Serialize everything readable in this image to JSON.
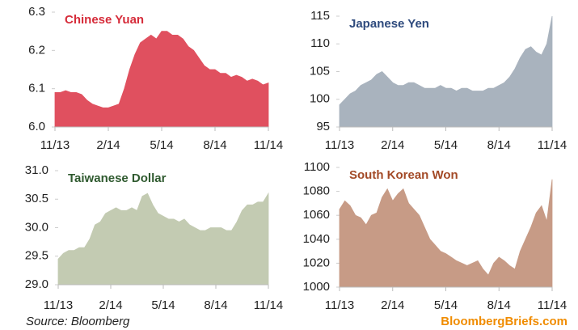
{
  "chart_data": [
    {
      "type": "area",
      "title": "Chinese Yuan",
      "title_color": "#d62c3a",
      "color": "#e0505f",
      "x": [
        0,
        0.3,
        0.6,
        0.9,
        1.2,
        1.5,
        1.8,
        2.1,
        2.4,
        2.7,
        3,
        3.3,
        3.6,
        3.9,
        4.2,
        4.5,
        4.8,
        5.1,
        5.4,
        5.7,
        6,
        6.3,
        6.6,
        6.9,
        7.2,
        7.5,
        7.8,
        8.1,
        8.4,
        8.7,
        9,
        9.3,
        9.6,
        9.9,
        10.2,
        10.5,
        10.8,
        11.1,
        11.4,
        11.7,
        12
      ],
      "values": [
        6.09,
        6.09,
        6.095,
        6.09,
        6.09,
        6.085,
        6.07,
        6.06,
        6.055,
        6.05,
        6.05,
        6.055,
        6.06,
        6.1,
        6.15,
        6.19,
        6.22,
        6.23,
        6.24,
        6.23,
        6.25,
        6.25,
        6.24,
        6.24,
        6.23,
        6.21,
        6.2,
        6.18,
        6.16,
        6.15,
        6.15,
        6.14,
        6.14,
        6.13,
        6.135,
        6.13,
        6.12,
        6.125,
        6.12,
        6.11,
        6.115
      ],
      "xlim": [
        0,
        12
      ],
      "xticks": [
        {
          "value": 0,
          "label": "11/13"
        },
        {
          "value": 3,
          "label": "2/14"
        },
        {
          "value": 6,
          "label": "5/14"
        },
        {
          "value": 9,
          "label": "8/14"
        },
        {
          "value": 12,
          "label": "11/14"
        }
      ],
      "ylim": [
        6.0,
        6.3
      ],
      "yticks": [
        {
          "value": 6.0,
          "label": "6.0"
        },
        6.1,
        6.2,
        6.3
      ]
    },
    {
      "type": "area",
      "title": "Japanese Yen",
      "title_color": "#2e4a7d",
      "color": "#a9b3be",
      "x": [
        0,
        0.3,
        0.6,
        0.9,
        1.2,
        1.5,
        1.8,
        2.1,
        2.4,
        2.7,
        3,
        3.3,
        3.6,
        3.9,
        4.2,
        4.5,
        4.8,
        5.1,
        5.4,
        5.7,
        6,
        6.3,
        6.6,
        6.9,
        7.2,
        7.5,
        7.8,
        8.1,
        8.4,
        8.7,
        9,
        9.3,
        9.6,
        9.9,
        10.2,
        10.5,
        10.8,
        11.1,
        11.4,
        11.7,
        12
      ],
      "values": [
        99,
        100,
        101,
        101.5,
        102.5,
        103,
        103.5,
        104.5,
        105,
        104,
        103,
        102.5,
        102.5,
        103,
        103,
        102.5,
        102,
        102,
        102,
        102.5,
        102,
        102,
        101.5,
        102,
        102,
        101.5,
        101.5,
        101.5,
        102,
        102,
        102.5,
        103,
        104,
        105.5,
        107.5,
        109,
        109.5,
        108.5,
        108,
        110,
        115
      ],
      "xlim": [
        0,
        12
      ],
      "xticks": [
        {
          "value": 0,
          "label": "11/13"
        },
        {
          "value": 3,
          "label": "2/14"
        },
        {
          "value": 6,
          "label": "5/14"
        },
        {
          "value": 9,
          "label": "8/14"
        },
        {
          "value": 12,
          "label": "11/14"
        }
      ],
      "ylim": [
        95,
        115
      ],
      "yticks": [
        95,
        100,
        105,
        110,
        115
      ]
    },
    {
      "type": "area",
      "title": "Taiwanese Dollar",
      "title_color": "#2f5a2f",
      "color": "#c3cbb2",
      "x": [
        0,
        0.3,
        0.6,
        0.9,
        1.2,
        1.5,
        1.8,
        2.1,
        2.4,
        2.7,
        3,
        3.3,
        3.6,
        3.9,
        4.2,
        4.5,
        4.8,
        5.1,
        5.4,
        5.7,
        6,
        6.3,
        6.6,
        6.9,
        7.2,
        7.5,
        7.8,
        8.1,
        8.4,
        8.7,
        9,
        9.3,
        9.6,
        9.9,
        10.2,
        10.5,
        10.8,
        11.1,
        11.4,
        11.7,
        12
      ],
      "values": [
        29.45,
        29.55,
        29.6,
        29.6,
        29.65,
        29.65,
        29.8,
        30.05,
        30.1,
        30.25,
        30.3,
        30.35,
        30.3,
        30.3,
        30.35,
        30.3,
        30.55,
        30.6,
        30.4,
        30.25,
        30.2,
        30.15,
        30.15,
        30.1,
        30.15,
        30.05,
        30.0,
        29.95,
        29.95,
        30.0,
        30.0,
        30.0,
        29.95,
        29.95,
        30.1,
        30.3,
        30.4,
        30.4,
        30.45,
        30.45,
        30.6
      ],
      "xlim": [
        0,
        12
      ],
      "xticks": [
        {
          "value": 0,
          "label": "11/13"
        },
        {
          "value": 3,
          "label": "2/14"
        },
        {
          "value": 6,
          "label": "5/14"
        },
        {
          "value": 9,
          "label": "8/14"
        },
        {
          "value": 12,
          "label": "11/14"
        }
      ],
      "ylim": [
        29.0,
        31.0
      ],
      "yticks": [
        {
          "value": 29.0,
          "label": "29.0"
        },
        29.5,
        {
          "value": 30.0,
          "label": "30.0"
        },
        30.5,
        {
          "value": 31.0,
          "label": "31.0"
        }
      ]
    },
    {
      "type": "area",
      "title": "South Korean Won",
      "title_color": "#a34a27",
      "color": "#c79b86",
      "x": [
        0,
        0.3,
        0.6,
        0.9,
        1.2,
        1.5,
        1.8,
        2.1,
        2.4,
        2.7,
        3,
        3.3,
        3.6,
        3.9,
        4.2,
        4.5,
        4.8,
        5.1,
        5.4,
        5.7,
        6,
        6.3,
        6.6,
        6.9,
        7.2,
        7.5,
        7.8,
        8.1,
        8.4,
        8.7,
        9,
        9.3,
        9.6,
        9.9,
        10.2,
        10.5,
        10.8,
        11.1,
        11.4,
        11.7,
        12
      ],
      "values": [
        1065,
        1072,
        1068,
        1060,
        1058,
        1052,
        1060,
        1062,
        1075,
        1082,
        1072,
        1078,
        1082,
        1070,
        1065,
        1060,
        1050,
        1040,
        1035,
        1030,
        1028,
        1025,
        1022,
        1020,
        1018,
        1020,
        1022,
        1015,
        1010,
        1020,
        1025,
        1022,
        1018,
        1015,
        1030,
        1040,
        1050,
        1062,
        1068,
        1055,
        1090
      ],
      "xlim": [
        0,
        12
      ],
      "xticks": [
        {
          "value": 0,
          "label": "11/13"
        },
        {
          "value": 3,
          "label": "2/14"
        },
        {
          "value": 6,
          "label": "5/14"
        },
        {
          "value": 9,
          "label": "8/14"
        },
        {
          "value": 12,
          "label": "11/14"
        }
      ],
      "ylim": [
        1000,
        1100
      ],
      "yticks": [
        1000,
        1020,
        1040,
        1060,
        1080,
        1100
      ]
    }
  ],
  "source": "Source: Bloomberg",
  "brand": "BloombergBriefs.com"
}
